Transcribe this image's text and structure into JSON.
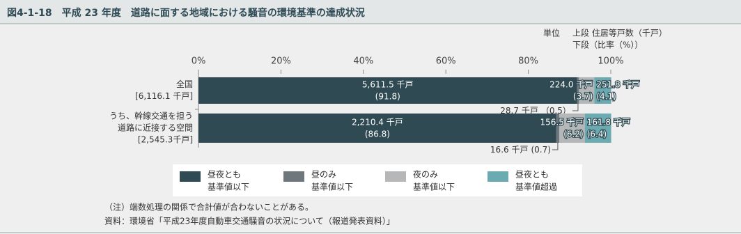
{
  "chart_data": {
    "type": "stacked-bar-horizontal",
    "title": "図4-1-18　平成 23 年度　道路に面する地域における騒音の環境基準の達成状況",
    "unit_label": "単位",
    "unit_lines": [
      "上段 住居等戸数（千戸）",
      "下段（比率（%））"
    ],
    "categories": [
      [
        "全国",
        "[6,116.1 千戸]"
      ],
      [
        "うち、幹線交通を担う",
        "道路に近接する空間",
        "[2,545.3千戸]"
      ]
    ],
    "xlim": [
      0,
      100
    ],
    "xticks": [
      {
        "value": 0,
        "label": "0%"
      },
      {
        "value": 20,
        "label": "20%"
      },
      {
        "value": 40,
        "label": "40%"
      },
      {
        "value": 60,
        "label": "60%"
      },
      {
        "value": 80,
        "label": "80%"
      },
      {
        "value": 100,
        "label": "100%"
      }
    ],
    "series": [
      {
        "name": [
          "昼夜とも",
          "基準値以下"
        ],
        "color": "#2f4a52",
        "values": [
          91.8,
          86.8
        ],
        "value_labels": [
          [
            "5,611.5 千戸",
            "(91.8)"
          ],
          [
            "2,210.4 千戸",
            "(86.8)"
          ]
        ]
      },
      {
        "name": [
          "昼のみ",
          "基準値以下"
        ],
        "color": "#6e787c",
        "values": [
          0.5,
          0.7
        ],
        "value_labels": [
          [
            "28.7 千戸",
            "（0.5）"
          ],
          [
            "16.6 千戸",
            "(0.7)"
          ]
        ]
      },
      {
        "name": [
          "夜のみ",
          "基準値以下"
        ],
        "color": "#b5b7b8",
        "values": [
          3.7,
          6.2
        ],
        "value_labels": [
          [
            "224.0 千戸",
            "(3.7)"
          ],
          [
            "156.5 千戸",
            "(6.2)"
          ]
        ]
      },
      {
        "name": [
          "昼夜とも",
          "基準値超過"
        ],
        "color": "#6aaab0",
        "values": [
          4.1,
          6.4
        ],
        "value_labels": [
          [
            "251.8 千戸",
            "(4.1)"
          ],
          [
            "161.8 千戸",
            "(6.4)"
          ]
        ]
      }
    ],
    "notes": [
      "（注）端数処理の関係で合計値が合わないことがある。",
      "資料：環境省「平成23年度自動車交通騒音の状況について（報道発表資料）」"
    ]
  }
}
